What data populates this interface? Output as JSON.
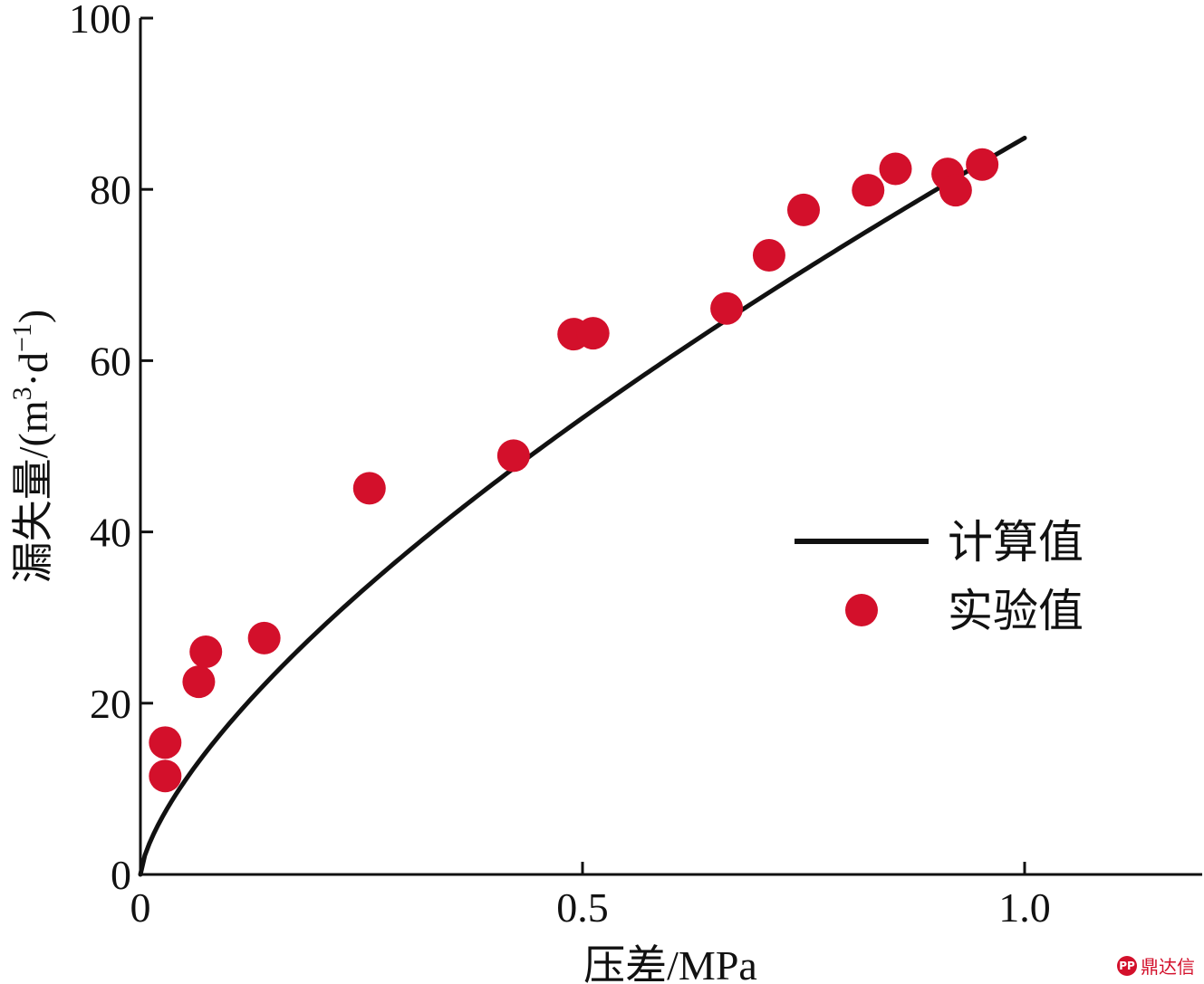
{
  "chart_data": {
    "type": "scatter",
    "title": "",
    "xlabel": "压差/MPa",
    "ylabel_main": "漏失量/(m",
    "ylabel_sup1": "3",
    "ylabel_mid": "·d",
    "ylabel_sup2": "−1",
    "ylabel_end": ")",
    "xlim": [
      0,
      1.2
    ],
    "ylim": [
      0,
      100
    ],
    "x_ticks": [
      {
        "value": 0,
        "label": "0"
      },
      {
        "value": 0.5,
        "label": "0.5"
      },
      {
        "value": 1.0,
        "label": "1.0"
      }
    ],
    "y_ticks": [
      {
        "value": 0,
        "label": "0"
      },
      {
        "value": 20,
        "label": "20"
      },
      {
        "value": 40,
        "label": "40"
      },
      {
        "value": 60,
        "label": "60"
      },
      {
        "value": 80,
        "label": "80"
      },
      {
        "value": 100,
        "label": "100"
      }
    ],
    "series": [
      {
        "name": "计算值",
        "kind": "line",
        "color": "#111111",
        "formula": "86 * x^0.69",
        "coef": 86,
        "exponent": 0.69,
        "x_range": [
          0,
          1.0
        ]
      },
      {
        "name": "实验值",
        "kind": "scatter",
        "color": "#d3102b",
        "points": [
          {
            "x": 0.028,
            "y": 15.4
          },
          {
            "x": 0.028,
            "y": 11.5
          },
          {
            "x": 0.066,
            "y": 22.5
          },
          {
            "x": 0.074,
            "y": 26.0
          },
          {
            "x": 0.14,
            "y": 27.6
          },
          {
            "x": 0.259,
            "y": 45.1
          },
          {
            "x": 0.422,
            "y": 48.9
          },
          {
            "x": 0.49,
            "y": 63.1
          },
          {
            "x": 0.512,
            "y": 63.2
          },
          {
            "x": 0.663,
            "y": 66.1
          },
          {
            "x": 0.711,
            "y": 72.3
          },
          {
            "x": 0.75,
            "y": 77.6
          },
          {
            "x": 0.823,
            "y": 79.9
          },
          {
            "x": 0.854,
            "y": 82.4
          },
          {
            "x": 0.913,
            "y": 81.8
          },
          {
            "x": 0.922,
            "y": 79.9
          },
          {
            "x": 0.952,
            "y": 82.9
          }
        ]
      }
    ],
    "legend": {
      "position": "right-middle",
      "line_label": "计算值",
      "marker_label": "实验值"
    }
  },
  "watermark": {
    "badge": "PP",
    "text": "鼎达信"
  }
}
